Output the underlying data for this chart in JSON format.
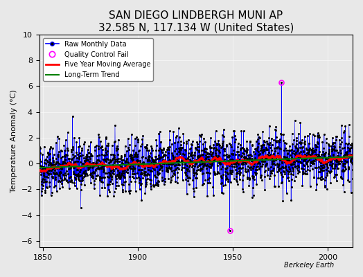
{
  "title": "SAN DIEGO LINDBERGH MUNI AP",
  "subtitle": "32.585 N, 117.134 W (United States)",
  "xlabel": "",
  "ylabel": "Temperature Anomaly (°C)",
  "xlim": [
    1848,
    2013
  ],
  "ylim": [
    -6.5,
    10
  ],
  "yticks": [
    -6,
    -4,
    -2,
    0,
    2,
    4,
    6,
    8,
    10
  ],
  "xticks": [
    1850,
    1900,
    1950,
    2000
  ],
  "line_color": "blue",
  "marker_color": "black",
  "ma_color": "red",
  "trend_color": "green",
  "qc_color": "magenta",
  "background_color": "#e8e8e8",
  "watermark": "Berkeley Earth",
  "title_fontsize": 11,
  "subtitle_fontsize": 9,
  "ylabel_fontsize": 8,
  "tick_fontsize": 8
}
